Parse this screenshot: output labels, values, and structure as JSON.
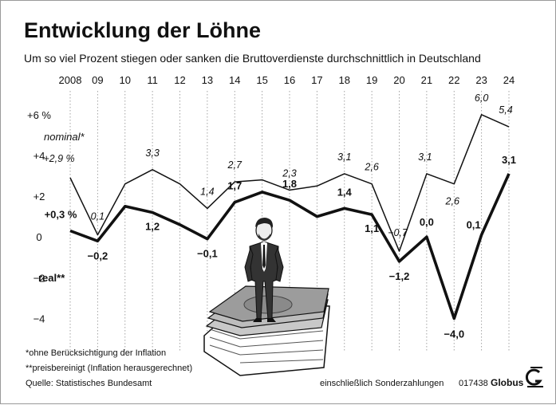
{
  "header": {
    "title": "Entwicklung der Löhne",
    "subtitle": "Um so viel Prozent stiegen oder sanken die Bruttoverdienste durchschnittlich in Deutschland"
  },
  "chart_data": {
    "type": "line",
    "categories": [
      "2008",
      "09",
      "10",
      "11",
      "12",
      "13",
      "14",
      "15",
      "16",
      "17",
      "18",
      "19",
      "20",
      "21",
      "22",
      "23",
      "24"
    ],
    "ylim": [
      -5,
      6.5
    ],
    "yticks": [
      {
        "value": 6,
        "label": "+6 %"
      },
      {
        "value": 4,
        "label": "+4"
      },
      {
        "value": 2,
        "label": "+2"
      },
      {
        "value": 0,
        "label": "0"
      },
      {
        "value": -2,
        "label": "−2"
      },
      {
        "value": -4,
        "label": "−4"
      }
    ],
    "grid": "vertical dotted lines at each year",
    "series": [
      {
        "name": "nominal*",
        "style": "thin",
        "values": [
          2.9,
          0.1,
          2.6,
          3.3,
          2.6,
          1.4,
          2.7,
          2.8,
          2.3,
          2.5,
          3.1,
          2.6,
          -0.7,
          3.1,
          2.6,
          6.0,
          5.4
        ],
        "labels": [
          "+2,9 %",
          "0,1",
          "",
          "3,3",
          "",
          "1,4",
          "2,7",
          "",
          "2,3",
          "",
          "3,1",
          "2,6",
          "−0,7",
          "3,1",
          "2,6",
          "6,0",
          "5,4"
        ]
      },
      {
        "name": "real**",
        "style": "bold",
        "values": [
          0.3,
          -0.2,
          1.5,
          1.2,
          0.6,
          -0.1,
          1.7,
          2.2,
          1.8,
          1.0,
          1.4,
          1.1,
          -1.2,
          0.0,
          -4.0,
          0.1,
          3.1
        ],
        "labels": [
          "+0,3 %",
          "−0,2",
          "",
          "1,2",
          "",
          "−0,1",
          "1,7",
          "",
          "1,8",
          "",
          "1,4",
          "1,1",
          "−1,2",
          "0,0",
          "−4,0",
          "0,1",
          "3,1"
        ]
      }
    ]
  },
  "footer": {
    "note1": "*ohne Berücksichtigung der Inflation",
    "note2": "**preisbereinigt (Inflation herausgerechnet)",
    "source": "Quelle: Statistisches Bundesamt",
    "note3": "einschließlich Sonderzahlungen",
    "code": "017438",
    "brand": "Globus"
  },
  "colors": {
    "ink": "#111111",
    "grid": "#9a9a9a",
    "money": "#9c9c9c"
  },
  "icons": [
    "businessman-illustration",
    "money-stack-illustration",
    "globus-logo-icon"
  ]
}
